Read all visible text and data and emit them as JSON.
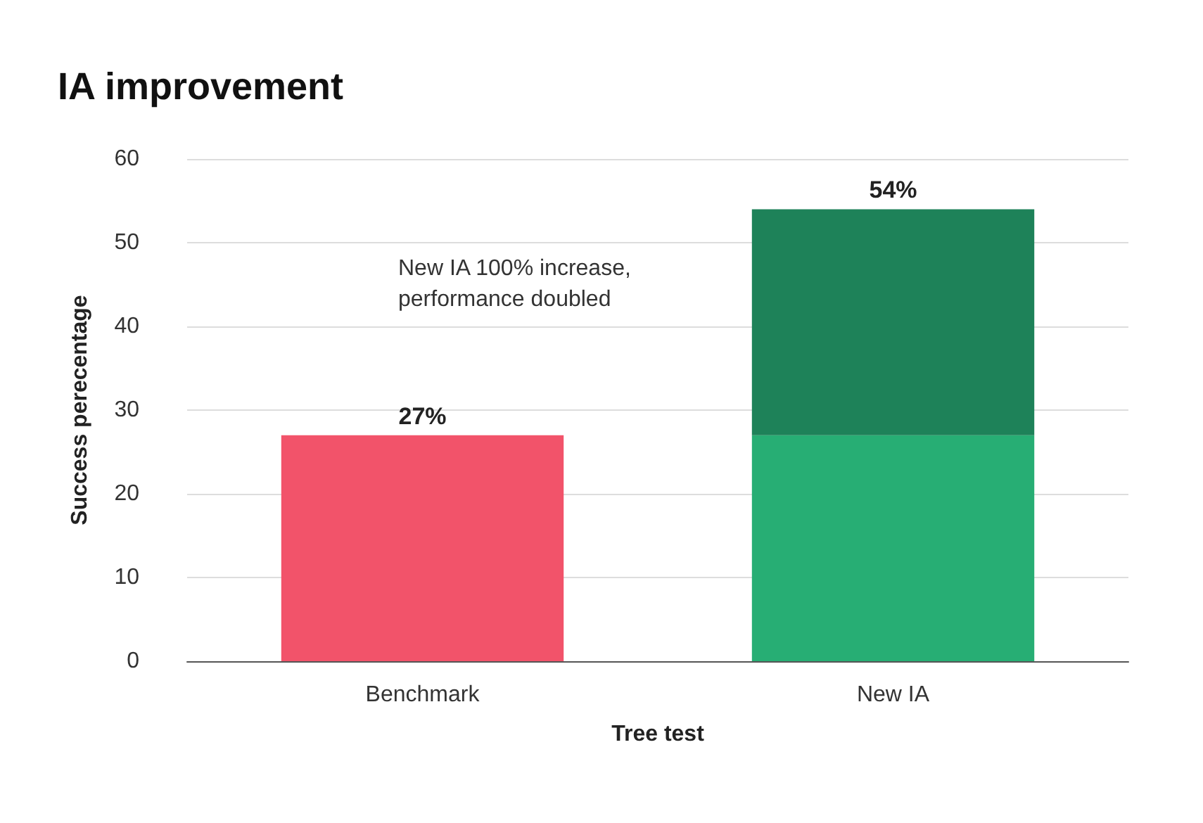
{
  "chart_data": {
    "type": "bar",
    "title": "IA improvement",
    "xlabel": "Tree test",
    "ylabel": "Success perecentage",
    "categories": [
      "Benchmark",
      "New IA"
    ],
    "stacked": true,
    "series": [
      {
        "colors": [
          "#f2536a",
          "#27ae74"
        ],
        "values": [
          27,
          27
        ]
      },
      {
        "color": "#1e8259",
        "values": [
          null,
          27
        ]
      }
    ],
    "totals": [
      "27%",
      "54%"
    ],
    "ylim": [
      0,
      60
    ],
    "yticks": [
      0,
      10,
      20,
      30,
      40,
      50,
      60
    ],
    "grid": "y",
    "annotations": [
      "New IA 100% increase,\nperformance doubled"
    ]
  }
}
